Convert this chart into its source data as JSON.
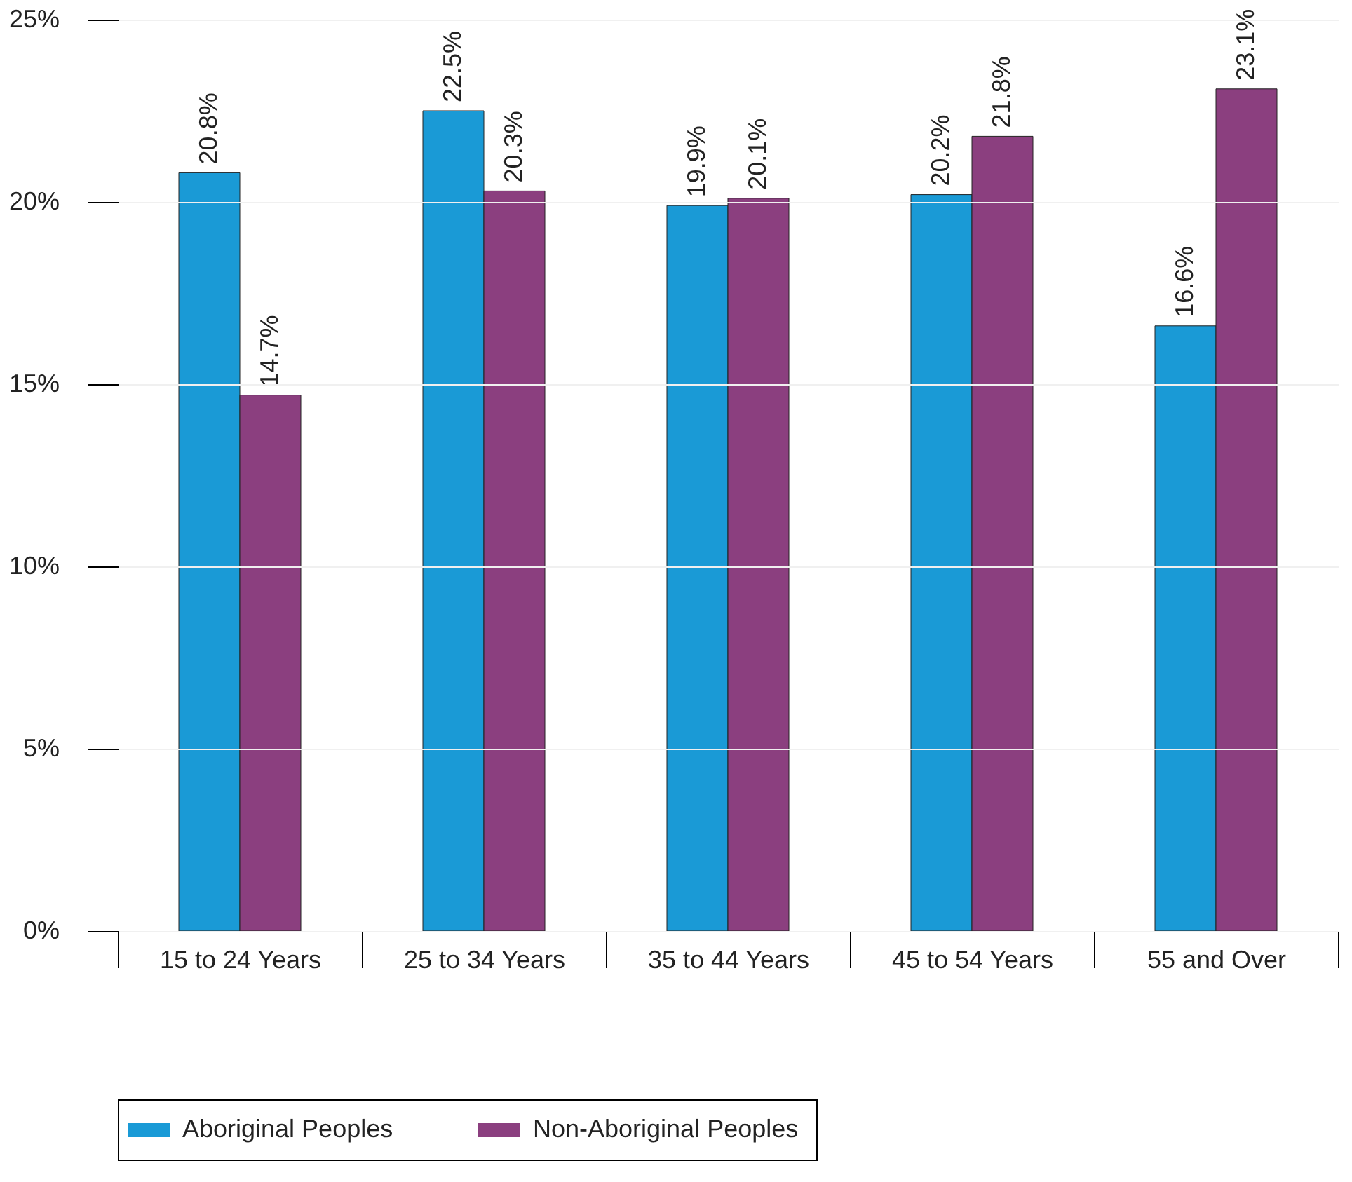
{
  "chart_data": {
    "type": "bar",
    "categories": [
      "15 to 24 Years",
      "25 to 34 Years",
      "35 to 44 Years",
      "45 to 54 Years",
      "55 and Over"
    ],
    "series": [
      {
        "name": "Aboriginal Peoples",
        "color": "#1a9ad6",
        "values": [
          20.8,
          22.5,
          19.9,
          20.2,
          16.6
        ],
        "value_labels": [
          "20.8%",
          "22.5%",
          "19.9%",
          "20.2%",
          "16.6%"
        ]
      },
      {
        "name": "Non-Aboriginal Peoples",
        "color": "#8b3f7f",
        "values": [
          14.7,
          20.3,
          20.1,
          21.8,
          23.1
        ],
        "value_labels": [
          "14.7%",
          "20.3%",
          "20.1%",
          "21.8%",
          "23.1%"
        ]
      }
    ],
    "ylim": [
      0,
      25
    ],
    "yticks": [
      {
        "value": 0,
        "label": "0%"
      },
      {
        "value": 5,
        "label": "5%"
      },
      {
        "value": 10,
        "label": "10%"
      },
      {
        "value": 15,
        "label": "15%"
      },
      {
        "value": 20,
        "label": "20%"
      },
      {
        "value": 25,
        "label": "25%"
      }
    ],
    "grid": "y",
    "legend": "bottom"
  }
}
